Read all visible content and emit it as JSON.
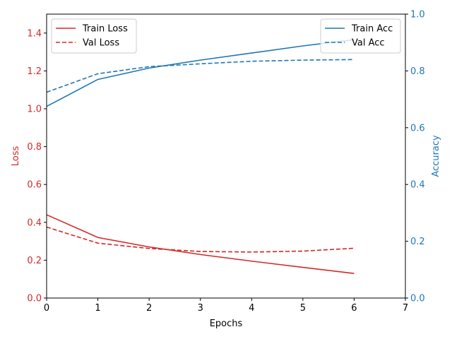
{
  "chart_data": {
    "type": "line",
    "title": "",
    "xlabel": "Epochs",
    "ylabel_left": "Loss",
    "ylabel_right": "Accuracy",
    "xlim": [
      0,
      7
    ],
    "ylim_left": [
      0,
      1.5
    ],
    "ylim_right": [
      0,
      1.0
    ],
    "x_ticks": [
      "0",
      "1",
      "2",
      "3",
      "4",
      "5",
      "6",
      "7"
    ],
    "y_left_ticks": [
      "0.0",
      "0.2",
      "0.4",
      "0.6",
      "0.8",
      "1.0",
      "1.2",
      "1.4"
    ],
    "y_right_ticks": [
      "0.0",
      "0.2",
      "0.4",
      "0.6",
      "0.8",
      "1.0"
    ],
    "grid": false,
    "x": [
      0,
      1,
      2,
      3,
      4,
      5,
      6
    ],
    "series": [
      {
        "name": "Train Loss",
        "axis": "left",
        "style": "solid",
        "color": "#d62728",
        "values": [
          0.44,
          0.32,
          0.27,
          0.23,
          0.195,
          0.162,
          0.13
        ]
      },
      {
        "name": "Val Loss",
        "axis": "left",
        "style": "dashed",
        "color": "#d62728",
        "values": [
          0.375,
          0.29,
          0.262,
          0.246,
          0.243,
          0.248,
          0.263
        ]
      },
      {
        "name": "Train Acc",
        "axis": "right",
        "style": "solid",
        "color": "#1f77b4",
        "values": [
          0.675,
          0.77,
          0.81,
          0.838,
          0.863,
          0.888,
          0.91
        ]
      },
      {
        "name": "Val Acc",
        "axis": "right",
        "style": "dashed",
        "color": "#1f77b4",
        "values": [
          0.725,
          0.79,
          0.815,
          0.825,
          0.834,
          0.838,
          0.84
        ]
      }
    ],
    "legend_left_placement": "upper-left",
    "legend_right_placement": "upper-right",
    "left_axis_color": "#d62728",
    "right_axis_color": "#1f77b4"
  }
}
